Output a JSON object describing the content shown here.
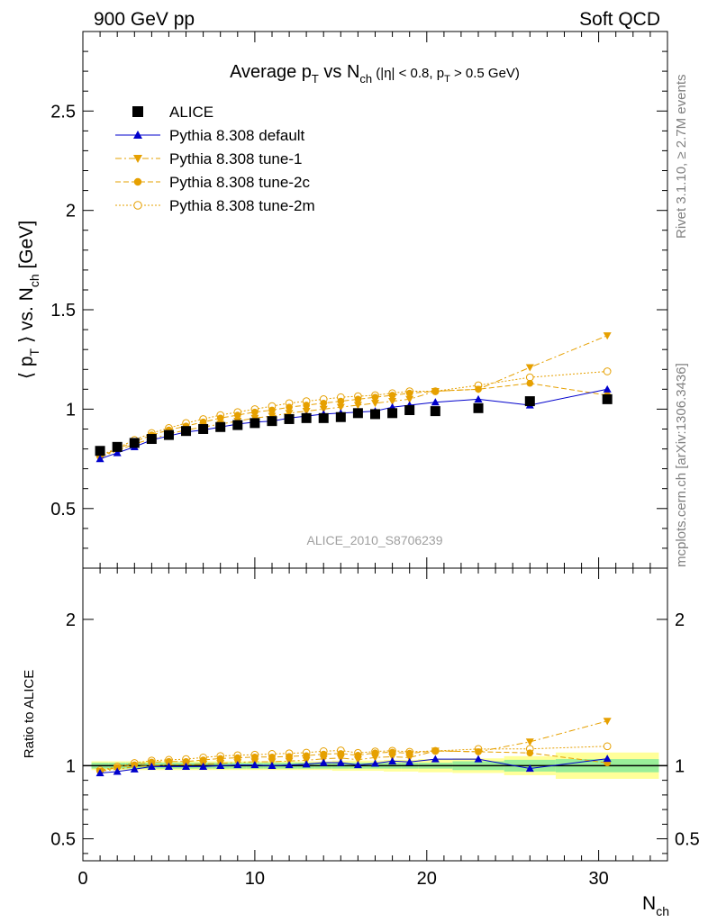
{
  "header": {
    "left": "900 GeV pp",
    "right": "Soft QCD"
  },
  "side_labels": {
    "rivet": "Rivet 3.1.10, ≥ 2.7M events",
    "mcplots": "mcplots.cern.ch [arXiv:1306.3436]"
  },
  "watermark": "ALICE_2010_S8706239",
  "colors": {
    "data": "#000000",
    "default": "#0000cc",
    "tunes": "#e6a000",
    "band_inner": "#99ee99",
    "band_outer": "#ffff99"
  },
  "chart_data": [
    {
      "type": "scatter",
      "title": "Average pT vs Nch (|η| < 0.8, pT > 0.5 GeV)",
      "title_parts": {
        "a": "Average p",
        "a_sub": "T",
        "b": " vs N",
        "b_sub": "ch",
        "c": " (|η| < 0.8, p",
        "c_sub": "T",
        "d": " > 0.5 GeV)"
      },
      "ylabel": "⟨ pT ⟩ vs. Nch [GeV]",
      "ylabel_parts": {
        "a": "⟨ p",
        "a_sub": "T",
        "b": " ⟩ vs. N",
        "b_sub": "ch",
        "c": " [GeV]"
      },
      "xlim": [
        0,
        34
      ],
      "ylim": [
        0.2,
        2.9
      ],
      "yticks": [
        0.5,
        1,
        1.5,
        2,
        2.5
      ],
      "ytick_labels": [
        "0.5",
        "1",
        "1.5",
        "2",
        "2.5"
      ],
      "legend_position": "top-left",
      "series": [
        {
          "name": "ALICE",
          "marker": "filled-square",
          "style": "none",
          "x": [
            1,
            2,
            3,
            4,
            5,
            6,
            7,
            8,
            9,
            10,
            11,
            12,
            13,
            14,
            15,
            16,
            17,
            18,
            19,
            20.5,
            23,
            26,
            30.5
          ],
          "y": [
            0.79,
            0.81,
            0.83,
            0.85,
            0.87,
            0.89,
            0.9,
            0.91,
            0.92,
            0.93,
            0.94,
            0.95,
            0.955,
            0.955,
            0.96,
            0.98,
            0.975,
            0.98,
            0.995,
            0.99,
            1.005,
            1.04,
            1.05
          ]
        },
        {
          "name": "Pythia 8.308 default",
          "marker": "filled-triangle-up",
          "style": "solid",
          "x": [
            1,
            2,
            3,
            4,
            5,
            6,
            7,
            8,
            9,
            10,
            11,
            12,
            13,
            14,
            15,
            16,
            17,
            18,
            19,
            20.5,
            23,
            26,
            30.5
          ],
          "y": [
            0.75,
            0.78,
            0.81,
            0.845,
            0.865,
            0.885,
            0.895,
            0.91,
            0.925,
            0.935,
            0.94,
            0.955,
            0.965,
            0.975,
            0.98,
            0.985,
            0.99,
            1.01,
            1.02,
            1.035,
            1.05,
            1.02,
            1.1
          ]
        },
        {
          "name": "Pythia 8.308 tune-1",
          "marker": "filled-triangle-down",
          "style": "dashdot",
          "x": [
            1,
            2,
            3,
            4,
            5,
            6,
            7,
            8,
            9,
            10,
            11,
            12,
            13,
            14,
            15,
            16,
            17,
            18,
            19,
            20.5,
            23,
            26,
            30.5
          ],
          "y": [
            0.76,
            0.79,
            0.825,
            0.85,
            0.875,
            0.895,
            0.91,
            0.925,
            0.94,
            0.955,
            0.965,
            0.98,
            0.99,
            1.0,
            1.01,
            1.02,
            1.03,
            1.04,
            1.05,
            1.09,
            1.1,
            1.21,
            1.37
          ]
        },
        {
          "name": "Pythia 8.308 tune-2c",
          "marker": "filled-circle",
          "style": "dashed",
          "x": [
            1,
            2,
            3,
            4,
            5,
            6,
            7,
            8,
            9,
            10,
            11,
            12,
            13,
            14,
            15,
            16,
            17,
            18,
            19,
            20.5,
            23,
            26,
            30.5
          ],
          "y": [
            0.76,
            0.8,
            0.835,
            0.87,
            0.895,
            0.915,
            0.935,
            0.955,
            0.97,
            0.985,
            0.995,
            1.01,
            1.02,
            1.03,
            1.04,
            1.05,
            1.06,
            1.07,
            1.08,
            1.09,
            1.1,
            1.13,
            1.07
          ]
        },
        {
          "name": "Pythia 8.308 tune-2m",
          "marker": "open-circle",
          "style": "dotted",
          "x": [
            1,
            2,
            3,
            4,
            5,
            6,
            7,
            8,
            9,
            10,
            11,
            12,
            13,
            14,
            15,
            16,
            17,
            18,
            19,
            20.5,
            23,
            26,
            30.5
          ],
          "y": [
            0.765,
            0.805,
            0.845,
            0.88,
            0.905,
            0.93,
            0.95,
            0.97,
            0.985,
            1.0,
            1.015,
            1.03,
            1.04,
            1.05,
            1.06,
            1.065,
            1.07,
            1.08,
            1.09,
            1.09,
            1.12,
            1.16,
            1.19
          ]
        }
      ]
    },
    {
      "type": "scatter",
      "title": "",
      "xlabel": "Nch",
      "xlabel_parts": {
        "a": "N",
        "a_sub": "ch"
      },
      "ylabel": "Ratio to ALICE",
      "xlim": [
        0,
        34
      ],
      "ylim": [
        0.35,
        2.35
      ],
      "xticks": [
        0,
        10,
        20,
        30
      ],
      "xtick_labels": [
        "0",
        "10",
        "20",
        "30"
      ],
      "yticks": [
        0.5,
        1,
        2
      ],
      "ytick_labels": [
        "0.5",
        "1",
        "2"
      ],
      "reference_band": {
        "x_edges": [
          0.5,
          1.5,
          2.5,
          3.5,
          4.5,
          5.5,
          6.5,
          7.5,
          8.5,
          9.5,
          10.5,
          11.5,
          12.5,
          13.5,
          14.5,
          15.5,
          16.5,
          17.5,
          18.5,
          19.5,
          21.5,
          24.5,
          27.5,
          33.5
        ],
        "inner_rel": [
          0.02,
          0.02,
          0.02,
          0.02,
          0.02,
          0.02,
          0.02,
          0.02,
          0.02,
          0.02,
          0.02,
          0.02,
          0.02,
          0.02,
          0.02,
          0.02,
          0.02,
          0.02,
          0.02,
          0.02,
          0.03,
          0.04,
          0.045
        ],
        "outer_rel": [
          0.03,
          0.03,
          0.03,
          0.03,
          0.03,
          0.03,
          0.03,
          0.03,
          0.03,
          0.03,
          0.03,
          0.03,
          0.03,
          0.03,
          0.035,
          0.035,
          0.035,
          0.04,
          0.04,
          0.045,
          0.05,
          0.065,
          0.09
        ]
      },
      "series": [
        {
          "name": "Pythia 8.308 default",
          "marker": "filled-triangle-up",
          "style": "solid",
          "x": [
            1,
            2,
            3,
            4,
            5,
            6,
            7,
            8,
            9,
            10,
            11,
            12,
            13,
            14,
            15,
            16,
            17,
            18,
            19,
            20.5,
            23,
            26,
            30.5
          ],
          "y": [
            0.95,
            0.96,
            0.976,
            0.994,
            0.994,
            0.994,
            0.994,
            1.0,
            1.005,
            1.005,
            1.0,
            1.005,
            1.01,
            1.021,
            1.021,
            1.005,
            1.015,
            1.031,
            1.025,
            1.045,
            1.045,
            0.981,
            1.048
          ]
        },
        {
          "name": "Pythia 8.308 tune-1",
          "marker": "filled-triangle-down",
          "style": "dashdot",
          "x": [
            1,
            2,
            3,
            4,
            5,
            6,
            7,
            8,
            9,
            10,
            11,
            12,
            13,
            14,
            15,
            16,
            17,
            18,
            19,
            20.5,
            23,
            26,
            30.5
          ],
          "y": [
            0.962,
            0.975,
            0.994,
            1.0,
            1.006,
            1.006,
            1.011,
            1.016,
            1.022,
            1.027,
            1.027,
            1.032,
            1.037,
            1.047,
            1.052,
            1.041,
            1.056,
            1.061,
            1.055,
            1.101,
            1.095,
            1.163,
            1.305
          ]
        },
        {
          "name": "Pythia 8.308 tune-2c",
          "marker": "filled-circle",
          "style": "dashed",
          "x": [
            1,
            2,
            3,
            4,
            5,
            6,
            7,
            8,
            9,
            10,
            11,
            12,
            13,
            14,
            15,
            16,
            17,
            18,
            19,
            20.5,
            23,
            26,
            30.5
          ],
          "y": [
            0.962,
            0.988,
            1.006,
            1.024,
            1.029,
            1.028,
            1.039,
            1.049,
            1.054,
            1.059,
            1.059,
            1.063,
            1.068,
            1.079,
            1.083,
            1.071,
            1.087,
            1.092,
            1.085,
            1.101,
            1.095,
            1.087,
            1.019
          ]
        },
        {
          "name": "Pythia 8.308 tune-2m",
          "marker": "open-circle",
          "style": "dotted",
          "x": [
            1,
            2,
            3,
            4,
            5,
            6,
            7,
            8,
            9,
            10,
            11,
            12,
            13,
            14,
            15,
            16,
            17,
            18,
            19,
            20.5,
            23,
            26,
            30.5
          ],
          "y": [
            0.968,
            0.994,
            1.018,
            1.035,
            1.04,
            1.045,
            1.056,
            1.066,
            1.071,
            1.075,
            1.08,
            1.084,
            1.089,
            1.099,
            1.104,
            1.087,
            1.097,
            1.102,
            1.095,
            1.101,
            1.114,
            1.115,
            1.133
          ]
        }
      ]
    }
  ]
}
